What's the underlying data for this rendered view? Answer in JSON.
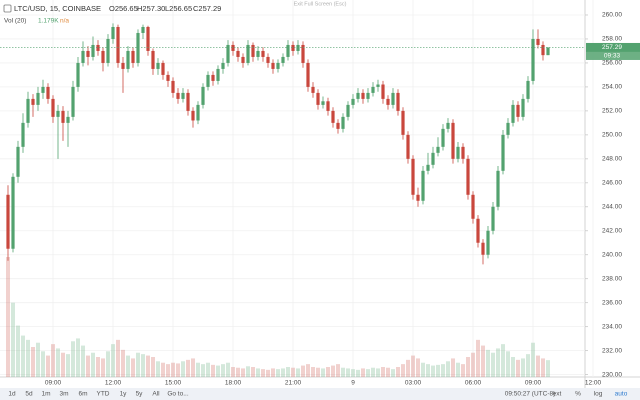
{
  "chart_data": {
    "type": "candlestick",
    "symbol": "LTC/USD, 15, COINBASE",
    "ohlc_text": [
      "O256.65",
      "H257.30",
      "L256.65",
      "C257.29"
    ],
    "volume_title": "Vol (20)",
    "volume_text": "1.179K",
    "volume_change": "n/a",
    "countdown": "09:33",
    "up_color": "#53a26f",
    "down_color": "#c9473d",
    "grid": true,
    "ylim": [
      229.8,
      261.25
    ],
    "yticks": [
      {
        "value": 230,
        "label": "230.00"
      },
      {
        "value": 232,
        "label": "232.00"
      },
      {
        "value": 234,
        "label": "234.00"
      },
      {
        "value": 236,
        "label": "236.00"
      },
      {
        "value": 238,
        "label": "238.00"
      },
      {
        "value": 240,
        "label": "240.00"
      },
      {
        "value": 242,
        "label": "242.00"
      },
      {
        "value": 244,
        "label": "244.00"
      },
      {
        "value": 246,
        "label": "246.00"
      },
      {
        "value": 248,
        "label": "248.00"
      },
      {
        "value": 250,
        "label": "250.00"
      },
      {
        "value": 252,
        "label": "252.00"
      },
      {
        "value": 254,
        "label": "254.00"
      },
      {
        "value": 256,
        "label": "256.00"
      },
      {
        "value": 258,
        "label": "258.00"
      },
      {
        "value": 260,
        "label": "260.00"
      }
    ],
    "categories": [
      null,
      null,
      null,
      null,
      null,
      null,
      null,
      null,
      null,
      "09:00",
      null,
      null,
      null,
      null,
      null,
      null,
      null,
      null,
      null,
      null,
      null,
      "12:00",
      null,
      null,
      null,
      null,
      null,
      null,
      null,
      null,
      null,
      null,
      null,
      "15:00",
      null,
      null,
      null,
      null,
      null,
      null,
      null,
      null,
      null,
      null,
      null,
      "18:00",
      null,
      null,
      null,
      null,
      null,
      null,
      null,
      null,
      null,
      null,
      null,
      "21:00",
      null,
      null,
      null,
      null,
      null,
      null,
      null,
      null,
      null,
      null,
      null,
      "9",
      null,
      null,
      null,
      null,
      null,
      null,
      null,
      null,
      null,
      null,
      null,
      "03:00",
      null,
      null,
      null,
      null,
      null,
      null,
      null,
      null,
      null,
      null,
      null,
      "06:00",
      null,
      null,
      null,
      null,
      null,
      null,
      null,
      null,
      null,
      null,
      null,
      "09:00",
      null,
      null,
      null,
      null,
      null,
      null,
      null,
      null,
      null,
      null,
      null,
      "12:00"
    ],
    "candles": [
      [
        245,
        245.8,
        239.5,
        240.5
      ],
      [
        240.5,
        246.8,
        240.2,
        246.5
      ],
      [
        246.5,
        249.5,
        246,
        249
      ],
      [
        249,
        251.8,
        248.5,
        251
      ],
      [
        251,
        253.6,
        250.6,
        253
      ],
      [
        253,
        253.4,
        251.5,
        252.5
      ],
      [
        252.5,
        254,
        252,
        253.5
      ],
      [
        253.5,
        254.6,
        253,
        254
      ],
      [
        254,
        254.3,
        252.6,
        253
      ],
      [
        253,
        253.3,
        251,
        251.5
      ],
      [
        251.5,
        252.5,
        248,
        252
      ],
      [
        252,
        252.4,
        249.5,
        251
      ],
      [
        251,
        252,
        249,
        251.5
      ],
      [
        251.5,
        254.5,
        251.2,
        254
      ],
      [
        254,
        256.5,
        253.6,
        256
      ],
      [
        256,
        257.8,
        255.7,
        257
      ],
      [
        257,
        257.4,
        255.8,
        256.5
      ],
      [
        256.5,
        258.2,
        256.2,
        257.5
      ],
      [
        257.5,
        257.9,
        256.6,
        257
      ],
      [
        257,
        257.3,
        255.3,
        256
      ],
      [
        256,
        258.4,
        255.7,
        258
      ],
      [
        258,
        259.3,
        257.6,
        259
      ],
      [
        259,
        259.2,
        255.6,
        256
      ],
      [
        256,
        256.5,
        253.5,
        255.5
      ],
      [
        255.5,
        257.4,
        255.2,
        257
      ],
      [
        257,
        257.3,
        255.6,
        256
      ],
      [
        256,
        258.8,
        255.7,
        258.5
      ],
      [
        258.5,
        259.2,
        258,
        259
      ],
      [
        259,
        259.1,
        256.6,
        257
      ],
      [
        257,
        257.2,
        255,
        255.5
      ],
      [
        255.5,
        256.4,
        255,
        256
      ],
      [
        256,
        256.2,
        254.6,
        255
      ],
      [
        255,
        255.3,
        254,
        254.5
      ],
      [
        254.5,
        254.8,
        253.1,
        253.5
      ],
      [
        253.5,
        253.9,
        252.6,
        253
      ],
      [
        253,
        253.9,
        252.7,
        253.5
      ],
      [
        253.5,
        253.8,
        251.6,
        252
      ],
      [
        252,
        252.3,
        250.6,
        251.2
      ],
      [
        251.2,
        252.8,
        250.9,
        252.5
      ],
      [
        252.5,
        254.3,
        252.2,
        254
      ],
      [
        254,
        255.3,
        253.7,
        255
      ],
      [
        255,
        255.3,
        254.1,
        254.5
      ],
      [
        254.5,
        255.8,
        254.2,
        255.5
      ],
      [
        255.5,
        256.4,
        255.1,
        256
      ],
      [
        256,
        257.9,
        255.7,
        257.5
      ],
      [
        257.5,
        257.8,
        256.6,
        257
      ],
      [
        257,
        257.3,
        256.1,
        256.5
      ],
      [
        256.5,
        256.8,
        255.6,
        256
      ],
      [
        256,
        257.9,
        255.8,
        257.5
      ],
      [
        257.5,
        257.7,
        256.1,
        256.5
      ],
      [
        256.5,
        257.4,
        256.2,
        257
      ],
      [
        257,
        257.3,
        256.1,
        256.5
      ],
      [
        256.5,
        256.8,
        255.6,
        256
      ],
      [
        256,
        256.3,
        255.1,
        255.5
      ],
      [
        255.5,
        256.3,
        255.2,
        256
      ],
      [
        256,
        256.8,
        255.7,
        256.5
      ],
      [
        256.5,
        257.9,
        256.2,
        257.5
      ],
      [
        257.5,
        257.8,
        256.6,
        257
      ],
      [
        257,
        257.9,
        256.7,
        257.5
      ],
      [
        257.5,
        257.8,
        255.6,
        256
      ],
      [
        256,
        256.3,
        253.6,
        254
      ],
      [
        254,
        254.4,
        253.1,
        253.5
      ],
      [
        253.5,
        253.8,
        252.1,
        252.5
      ],
      [
        252.5,
        253.2,
        252.2,
        252.8
      ],
      [
        252.8,
        253.1,
        251.6,
        252
      ],
      [
        252,
        252.3,
        250.6,
        251
      ],
      [
        251,
        251.3,
        250.1,
        250.5
      ],
      [
        250.5,
        251.8,
        250.2,
        251.5
      ],
      [
        251.5,
        252.8,
        251.2,
        252.5
      ],
      [
        252.5,
        253.4,
        252.2,
        253
      ],
      [
        253,
        253.9,
        252.7,
        253.5
      ],
      [
        253.5,
        253.8,
        252.6,
        253
      ],
      [
        253,
        253.9,
        252.7,
        253.5
      ],
      [
        253.5,
        254.4,
        253.2,
        254
      ],
      [
        254,
        254.6,
        253.6,
        254.2
      ],
      [
        254.2,
        254.5,
        252.6,
        253
      ],
      [
        253,
        253.3,
        252.1,
        252.5
      ],
      [
        252.5,
        253.9,
        252.2,
        253.5
      ],
      [
        253.5,
        253.8,
        251.6,
        252
      ],
      [
        252,
        252.3,
        249.6,
        250
      ],
      [
        250,
        250.3,
        247.6,
        248
      ],
      [
        248,
        248.3,
        244.6,
        245
      ],
      [
        245,
        245.6,
        244,
        244.5
      ],
      [
        244.5,
        247.4,
        244.2,
        247
      ],
      [
        247,
        248.5,
        246.7,
        247.5
      ],
      [
        247.5,
        249,
        247.2,
        248.5
      ],
      [
        248.5,
        249.8,
        248.2,
        249
      ],
      [
        249,
        250.9,
        248.7,
        250.5
      ],
      [
        250.5,
        251.4,
        250.2,
        251
      ],
      [
        251,
        251.3,
        247.6,
        248
      ],
      [
        248,
        249.4,
        247.7,
        249
      ],
      [
        249,
        249.3,
        247.6,
        248
      ],
      [
        248,
        248.3,
        244.6,
        245
      ],
      [
        245,
        245.3,
        242.6,
        243
      ],
      [
        243,
        243.3,
        240.6,
        241
      ],
      [
        241,
        241.3,
        239.2,
        240
      ],
      [
        240,
        242.4,
        239.7,
        242
      ],
      [
        242,
        244.4,
        241.7,
        244
      ],
      [
        244,
        247.4,
        243.7,
        247
      ],
      [
        247,
        250.4,
        246.7,
        250
      ],
      [
        250,
        251.4,
        249.7,
        251
      ],
      [
        251,
        252.9,
        250.7,
        252.5
      ],
      [
        252.5,
        252.8,
        251.1,
        251.5
      ],
      [
        251.5,
        253.4,
        251.2,
        253
      ],
      [
        253,
        254.9,
        252.7,
        254.5
      ],
      [
        254.5,
        258.8,
        254.2,
        258
      ],
      [
        258,
        258.8,
        257.2,
        257.5
      ],
      [
        257.5,
        257.8,
        256.2,
        256.65
      ],
      [
        256.65,
        257.3,
        256.65,
        257.29
      ],
      null,
      null,
      null,
      null,
      null,
      null,
      null,
      null,
      null
    ],
    "volumes": [
      8400,
      5200,
      3600,
      2900,
      2600,
      2100,
      2400,
      1800,
      1500,
      2300,
      2000,
      1700,
      1600,
      2500,
      2700,
      2200,
      1500,
      1700,
      1400,
      1300,
      1800,
      2300,
      2600,
      1900,
      1500,
      1300,
      1700,
      1600,
      1500,
      1400,
      1100,
      1000,
      900,
      1000,
      950,
      1100,
      1200,
      1300,
      1000,
      900,
      1000,
      850,
      800,
      900,
      1000,
      700,
      650,
      600,
      750,
      700,
      600,
      550,
      500,
      600,
      550,
      600,
      700,
      650,
      600,
      800,
      900,
      700,
      650,
      600,
      700,
      800,
      900,
      650,
      600,
      550,
      500,
      600,
      550,
      650,
      600,
      700,
      650,
      550,
      700,
      900,
      1200,
      1500,
      1300,
      1000,
      900,
      800,
      850,
      900,
      1100,
      1300,
      1000,
      900,
      1400,
      1700,
      2600,
      2200,
      1900,
      1700,
      2000,
      2300,
      1800,
      1400,
      1200,
      1300,
      1600,
      2400,
      1500,
      1300,
      1179,
      null,
      null,
      null,
      null,
      null,
      null,
      null,
      null,
      null
    ]
  },
  "fullscreen_hint": "Exit Full Screen (Esc)",
  "toolbar": {
    "ranges": [
      "1d",
      "5d",
      "1m",
      "3m",
      "6m",
      "YTD",
      "1y",
      "5y",
      "All"
    ],
    "goto": "Go to...",
    "clock": "09:50:27 (UTC-8)",
    "options": [
      "ext",
      "%",
      "log",
      "auto"
    ]
  }
}
